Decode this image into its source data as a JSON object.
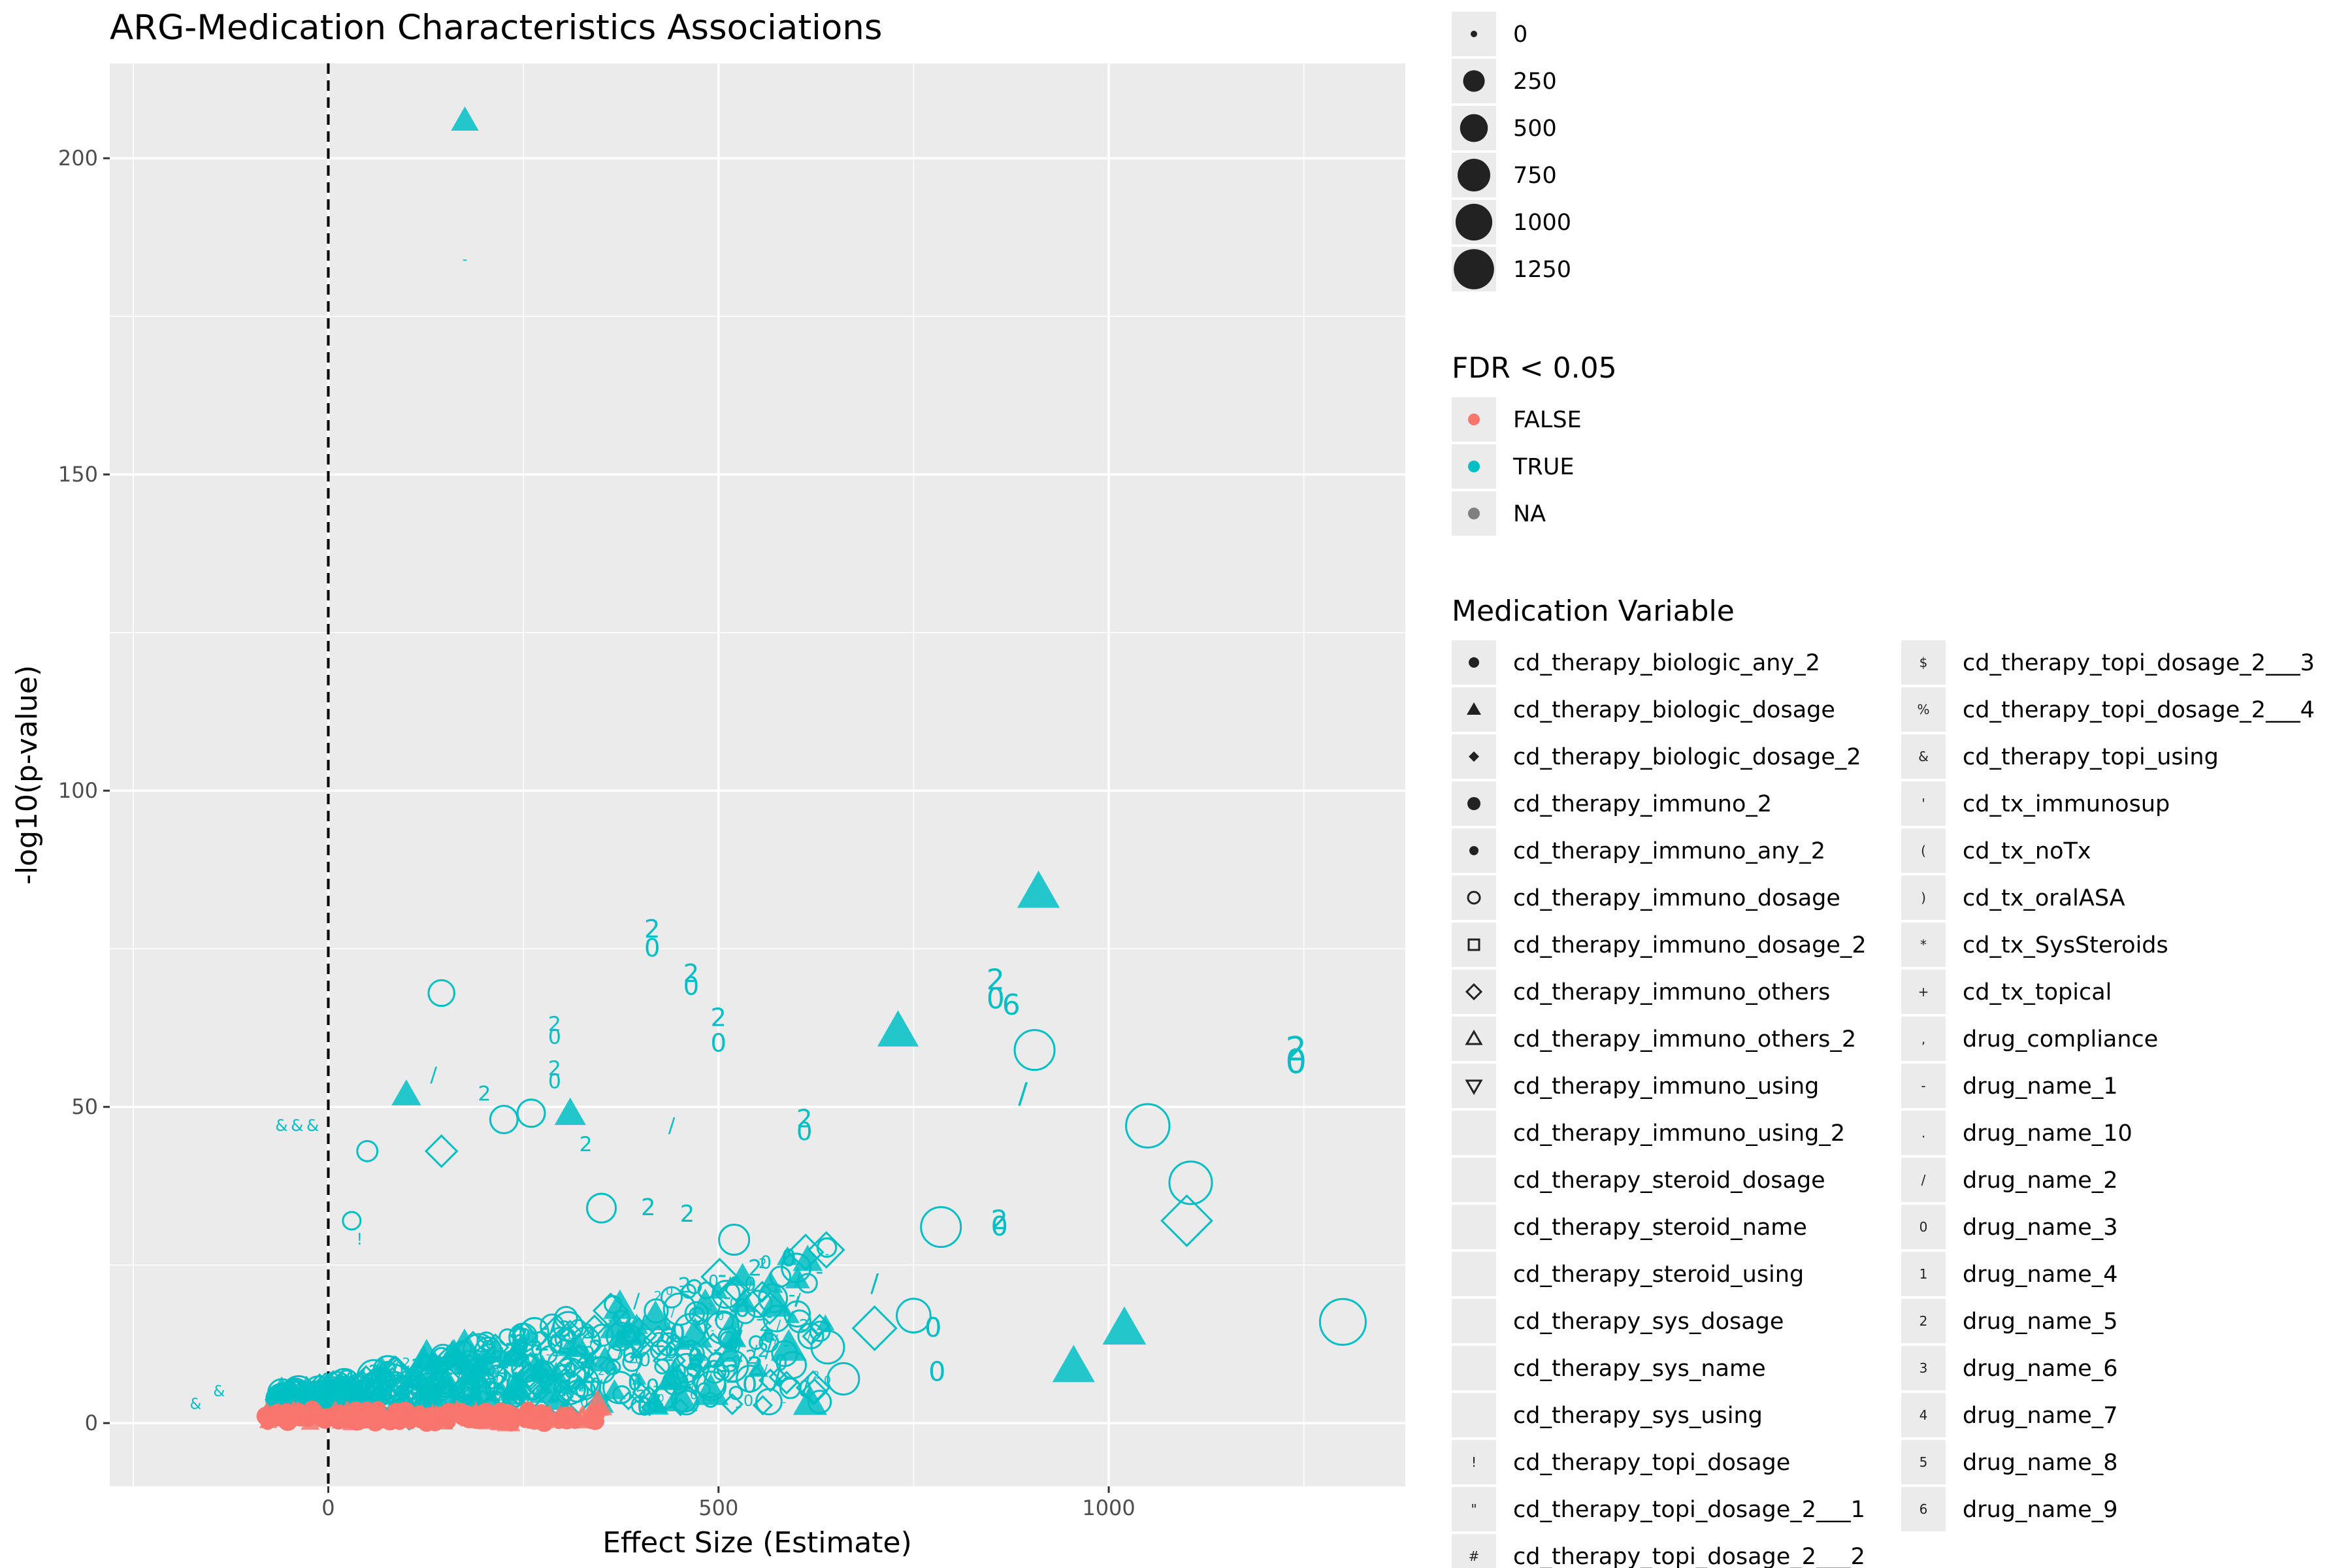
{
  "chart_data": {
    "type": "scatter",
    "title": "ARG-Medication Characteristics Associations",
    "xlabel": "Effect Size (Estimate)",
    "ylabel": "-log10(p-value)",
    "xlim": [
      -280,
      1380
    ],
    "ylim": [
      -10,
      215
    ],
    "x_ticks": [
      0,
      500,
      1000
    ],
    "y_ticks": [
      0,
      50,
      100,
      150,
      200
    ],
    "reference_line": {
      "x": 0,
      "style": "dashed"
    },
    "grid": true,
    "legend_position": "right",
    "size_legend": {
      "title": "",
      "values": [
        "0",
        "250",
        "500",
        "750",
        "1000",
        "1250"
      ]
    },
    "color_legend": {
      "title": "FDR < 0.05",
      "entries": [
        {
          "label": "FALSE",
          "color": "#F8766D"
        },
        {
          "label": "TRUE",
          "color": "#00BFC4"
        },
        {
          "label": "NA",
          "color": "#7f7f7f"
        }
      ]
    },
    "shape_legend": {
      "title": "Medication Variable",
      "entries": [
        {
          "label": "cd_therapy_biologic_any_2",
          "glyph": "circle-filled"
        },
        {
          "label": "cd_therapy_biologic_dosage",
          "glyph": "triangle-filled"
        },
        {
          "label": "cd_therapy_biologic_dosage_2",
          "glyph": "diamond-filled"
        },
        {
          "label": "cd_therapy_immuno_2",
          "glyph": "circle-filled-large"
        },
        {
          "label": "cd_therapy_immuno_any_2",
          "glyph": "circle-filled-small"
        },
        {
          "label": "cd_therapy_immuno_dosage",
          "glyph": "circle-open"
        },
        {
          "label": "cd_therapy_immuno_dosage_2",
          "glyph": "square-open"
        },
        {
          "label": "cd_therapy_immuno_others",
          "glyph": "diamond-open"
        },
        {
          "label": "cd_therapy_immuno_others_2",
          "glyph": "triangle-open"
        },
        {
          "label": "cd_therapy_immuno_using",
          "glyph": "triangle-down-open"
        },
        {
          "label": "cd_therapy_immuno_using_2",
          "glyph": "none"
        },
        {
          "label": "cd_therapy_steroid_dosage",
          "glyph": "none"
        },
        {
          "label": "cd_therapy_steroid_name",
          "glyph": "none"
        },
        {
          "label": "cd_therapy_steroid_using",
          "glyph": "none"
        },
        {
          "label": "cd_therapy_sys_dosage",
          "glyph": "none"
        },
        {
          "label": "cd_therapy_sys_name",
          "glyph": "none"
        },
        {
          "label": "cd_therapy_sys_using",
          "glyph": "none"
        },
        {
          "label": "cd_therapy_topi_dosage",
          "glyph": "!"
        },
        {
          "label": "cd_therapy_topi_dosage_2___1",
          "glyph": "\""
        },
        {
          "label": "cd_therapy_topi_dosage_2___2",
          "glyph": "#"
        },
        {
          "label": "cd_therapy_topi_dosage_2___3",
          "glyph": "$"
        },
        {
          "label": "cd_therapy_topi_dosage_2___4",
          "glyph": "%"
        },
        {
          "label": "cd_therapy_topi_using",
          "glyph": "&"
        },
        {
          "label": "cd_tx_immunosup",
          "glyph": "'"
        },
        {
          "label": "cd_tx_noTx",
          "glyph": "("
        },
        {
          "label": "cd_tx_oralASA",
          "glyph": ")"
        },
        {
          "label": "cd_tx_SysSteroids",
          "glyph": "*"
        },
        {
          "label": "cd_tx_topical",
          "glyph": "+"
        },
        {
          "label": "drug_compliance",
          "glyph": ","
        },
        {
          "label": "drug_name_1",
          "glyph": "-"
        },
        {
          "label": "drug_name_10",
          "glyph": "."
        },
        {
          "label": "drug_name_2",
          "glyph": "/"
        },
        {
          "label": "drug_name_3",
          "glyph": "0"
        },
        {
          "label": "drug_name_4",
          "glyph": "1"
        },
        {
          "label": "drug_name_5",
          "glyph": "2"
        },
        {
          "label": "drug_name_6",
          "glyph": "3"
        },
        {
          "label": "drug_name_7",
          "glyph": "4"
        },
        {
          "label": "drug_name_8",
          "glyph": "5"
        },
        {
          "label": "drug_name_9",
          "glyph": "6"
        }
      ]
    },
    "highlighted_points": [
      {
        "x": 175,
        "y": 206,
        "shape": "triangle",
        "fdr": "TRUE",
        "size": 250
      },
      {
        "x": 175,
        "y": 184,
        "shape": "-",
        "fdr": "TRUE",
        "size": 100
      },
      {
        "x": 910,
        "y": 84,
        "shape": "triangle",
        "fdr": "TRUE",
        "size": 750
      },
      {
        "x": 730,
        "y": 62,
        "shape": "triangle",
        "fdr": "TRUE",
        "size": 700
      },
      {
        "x": 1020,
        "y": 15,
        "shape": "triangle",
        "fdr": "TRUE",
        "size": 800
      },
      {
        "x": 955,
        "y": 9,
        "shape": "triangle",
        "fdr": "TRUE",
        "size": 750
      },
      {
        "x": 1300,
        "y": 16,
        "shape": "circle-open",
        "fdr": "TRUE",
        "size": 1250
      },
      {
        "x": 1050,
        "y": 47,
        "shape": "circle-open",
        "fdr": "TRUE",
        "size": 1100
      },
      {
        "x": 1105,
        "y": 38,
        "shape": "circle-open",
        "fdr": "TRUE",
        "size": 1050
      },
      {
        "x": 1100,
        "y": 32,
        "shape": "diamond-open",
        "fdr": "TRUE",
        "size": 1000
      },
      {
        "x": 905,
        "y": 59,
        "shape": "circle-open",
        "fdr": "TRUE",
        "size": 900
      },
      {
        "x": 785,
        "y": 31,
        "shape": "circle-open",
        "fdr": "TRUE",
        "size": 900
      },
      {
        "x": 1240,
        "y": 59,
        "shape": "2",
        "fdr": "TRUE",
        "size": 1000
      },
      {
        "x": 1240,
        "y": 57,
        "shape": "0",
        "fdr": "TRUE",
        "size": 1000
      },
      {
        "x": 415,
        "y": 78,
        "shape": "2",
        "fdr": "TRUE",
        "size": 500
      },
      {
        "x": 415,
        "y": 75,
        "shape": "0",
        "fdr": "TRUE",
        "size": 500
      },
      {
        "x": 465,
        "y": 71,
        "shape": "2",
        "fdr": "TRUE",
        "size": 500
      },
      {
        "x": 465,
        "y": 69,
        "shape": "0",
        "fdr": "TRUE",
        "size": 500
      },
      {
        "x": 500,
        "y": 64,
        "shape": "2",
        "fdr": "TRUE",
        "size": 500
      },
      {
        "x": 500,
        "y": 60,
        "shape": "0",
        "fdr": "TRUE",
        "size": 500
      },
      {
        "x": 855,
        "y": 70,
        "shape": "2",
        "fdr": "TRUE",
        "size": 700
      },
      {
        "x": 855,
        "y": 67,
        "shape": "0",
        "fdr": "TRUE",
        "size": 700
      },
      {
        "x": 875,
        "y": 66,
        "shape": "6",
        "fdr": "TRUE",
        "size": 700
      },
      {
        "x": 290,
        "y": 63,
        "shape": "2",
        "fdr": "TRUE",
        "size": 300
      },
      {
        "x": 290,
        "y": 61,
        "shape": "0",
        "fdr": "TRUE",
        "size": 300
      },
      {
        "x": 290,
        "y": 56,
        "shape": "2",
        "fdr": "TRUE",
        "size": 300
      },
      {
        "x": 290,
        "y": 54,
        "shape": "0",
        "fdr": "TRUE",
        "size": 300
      },
      {
        "x": 200,
        "y": 52,
        "shape": "2",
        "fdr": "TRUE",
        "size": 300
      },
      {
        "x": 610,
        "y": 48,
        "shape": "2",
        "fdr": "TRUE",
        "size": 500
      },
      {
        "x": 610,
        "y": 46,
        "shape": "0",
        "fdr": "TRUE",
        "size": 500
      },
      {
        "x": 860,
        "y": 32,
        "shape": "2",
        "fdr": "TRUE",
        "size": 600
      },
      {
        "x": 860,
        "y": 31,
        "shape": "0",
        "fdr": "TRUE",
        "size": 600
      },
      {
        "x": 145,
        "y": 68,
        "shape": "circle-open",
        "fdr": "TRUE",
        "size": 300
      },
      {
        "x": 100,
        "y": 52,
        "shape": "triangle",
        "fdr": "TRUE",
        "size": 300
      },
      {
        "x": 310,
        "y": 49,
        "shape": "triangle",
        "fdr": "TRUE",
        "size": 350
      },
      {
        "x": 260,
        "y": 49,
        "shape": "circle-open",
        "fdr": "TRUE",
        "size": 350
      },
      {
        "x": 225,
        "y": 48,
        "shape": "circle-open",
        "fdr": "TRUE",
        "size": 350
      },
      {
        "x": 145,
        "y": 43,
        "shape": "diamond-open",
        "fdr": "TRUE",
        "size": 300
      },
      {
        "x": 330,
        "y": 44,
        "shape": "2",
        "fdr": "TRUE",
        "size": 300
      },
      {
        "x": 440,
        "y": 47,
        "shape": "/",
        "fdr": "TRUE",
        "size": 300
      },
      {
        "x": 890,
        "y": 52,
        "shape": "/",
        "fdr": "TRUE",
        "size": 700
      },
      {
        "x": 135,
        "y": 55,
        "shape": "/",
        "fdr": "TRUE",
        "size": 300
      },
      {
        "x": -40,
        "y": 47,
        "shape": "&",
        "fdr": "TRUE",
        "size": 150
      },
      {
        "x": -20,
        "y": 47,
        "shape": "&",
        "fdr": "TRUE",
        "size": 150
      },
      {
        "x": -60,
        "y": 47,
        "shape": "&",
        "fdr": "TRUE",
        "size": 150
      },
      {
        "x": 50,
        "y": 43,
        "shape": "circle-open",
        "fdr": "TRUE",
        "size": 150
      },
      {
        "x": 40,
        "y": 29,
        "shape": "!",
        "fdr": "TRUE",
        "size": 150
      },
      {
        "x": 30,
        "y": 32,
        "shape": "circle-open",
        "fdr": "TRUE",
        "size": 100
      },
      {
        "x": 350,
        "y": 34,
        "shape": "circle-open",
        "fdr": "TRUE",
        "size": 400
      },
      {
        "x": 410,
        "y": 34,
        "shape": "2",
        "fdr": "TRUE",
        "size": 400
      },
      {
        "x": 460,
        "y": 33,
        "shape": "2",
        "fdr": "TRUE",
        "size": 400
      },
      {
        "x": 520,
        "y": 29,
        "shape": "circle-open",
        "fdr": "TRUE",
        "size": 450
      },
      {
        "x": 590,
        "y": 26,
        "shape": "0",
        "fdr": "TRUE",
        "size": 450
      },
      {
        "x": 700,
        "y": 22,
        "shape": "/",
        "fdr": "TRUE",
        "size": 500
      },
      {
        "x": 750,
        "y": 17,
        "shape": "circle-open",
        "fdr": "TRUE",
        "size": 600
      },
      {
        "x": 775,
        "y": 15,
        "shape": "0",
        "fdr": "TRUE",
        "size": 600
      },
      {
        "x": 780,
        "y": 8,
        "shape": "0",
        "fdr": "TRUE",
        "size": 600
      },
      {
        "x": 700,
        "y": 15,
        "shape": "diamond-open",
        "fdr": "TRUE",
        "size": 700
      },
      {
        "x": 660,
        "y": 7,
        "shape": "circle-open",
        "fdr": "TRUE",
        "size": 500
      },
      {
        "x": 640,
        "y": 12,
        "shape": "circle-open",
        "fdr": "TRUE",
        "size": 550
      },
      {
        "x": 540,
        "y": 6,
        "shape": "0",
        "fdr": "TRUE",
        "size": 450
      },
      {
        "x": 490,
        "y": 5,
        "shape": "triangle",
        "fdr": "TRUE",
        "size": 500
      },
      {
        "x": 450,
        "y": 4,
        "shape": "triangle",
        "fdr": "TRUE",
        "size": 500
      },
      {
        "x": 590,
        "y": 12,
        "shape": "triangle",
        "fdr": "TRUE",
        "size": 500
      },
      {
        "x": 470,
        "y": 14,
        "shape": "triangle",
        "fdr": "TRUE",
        "size": 450
      },
      {
        "x": 345,
        "y": 3,
        "shape": "triangle",
        "fdr": "FALSE",
        "size": 300
      },
      {
        "x": -140,
        "y": 5,
        "shape": "&",
        "fdr": "TRUE",
        "size": 120
      },
      {
        "x": -170,
        "y": 3,
        "shape": "&",
        "fdr": "TRUE",
        "size": 120
      }
    ]
  }
}
